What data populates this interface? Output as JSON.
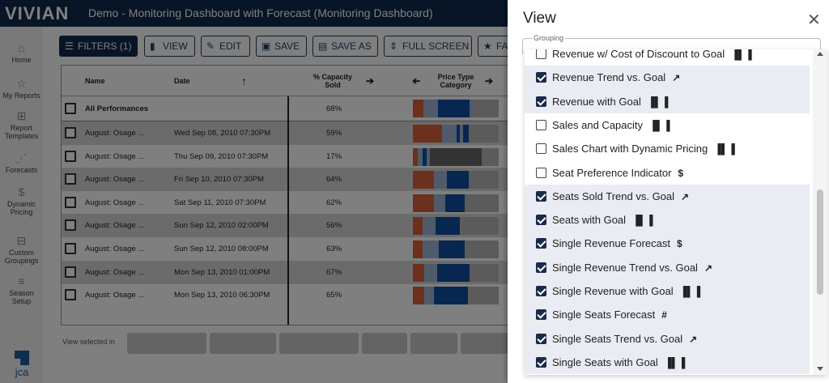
{
  "app": {
    "logo": "VIVIAN",
    "title": "Demo - Monitoring Dashboard with Forecast (Monitoring Dashboard)",
    "brand": "jca"
  },
  "colors": {
    "topbar": "#0f2b4c",
    "accent": "#1a2a4a",
    "bar_orange": "#d8613a",
    "bar_blue": "#0e4fa3",
    "bar_light": "#9fb6d4",
    "bar_grey": "#b7b7b7",
    "bar_dark_grey": "#666666"
  },
  "sidebar": {
    "items": [
      {
        "label": "Home",
        "icon": "home-icon"
      },
      {
        "label": "My Reports",
        "icon": "star-icon"
      },
      {
        "label": "Report Templates",
        "icon": "template-icon"
      },
      {
        "label": "Forecasts",
        "icon": "forecast-icon"
      },
      {
        "label": "Dynamic Pricing",
        "icon": "dollar-icon"
      },
      {
        "label": "Custom Groupings",
        "icon": "grouping-icon"
      },
      {
        "label": "Season Setup",
        "icon": "season-icon"
      }
    ]
  },
  "toolbar": {
    "filters": "FILTERS (1)",
    "view": "VIEW",
    "edit": "EDIT",
    "save": "SAVE",
    "save_as": "SAVE AS",
    "full_screen": "FULL SCREEN",
    "fav": "FA"
  },
  "grid": {
    "headers": {
      "name": "Name",
      "date": "Date",
      "capacity": "% Capacity Sold",
      "price_type": "Price Type Category"
    },
    "all_row": {
      "name": "All Performances",
      "capacity": "68%"
    },
    "rows": [
      {
        "name": "August: Osage ...",
        "date": "Wed Sep 08, 2010 07:30PM",
        "capacity": "59%"
      },
      {
        "name": "August: Osage ...",
        "date": "Thu Sep 09, 2010 07:30PM",
        "capacity": "17%"
      },
      {
        "name": "August: Osage ...",
        "date": "Fri Sep 10, 2010 07:30PM",
        "capacity": "64%"
      },
      {
        "name": "August: Osage ...",
        "date": "Sat Sep 11, 2010 07:30PM",
        "capacity": "62%"
      },
      {
        "name": "August: Osage ...",
        "date": "Sun Sep 12, 2010 02:00PM",
        "capacity": "56%"
      },
      {
        "name": "August: Osage ...",
        "date": "Sun Sep 12, 2010 08:00PM",
        "capacity": "63%"
      },
      {
        "name": "August: Osage ...",
        "date": "Mon Sep 13, 2010 01:00PM",
        "capacity": "67%"
      },
      {
        "name": "August: Osage ...",
        "date": "Mon Sep 13, 2010 06:30PM",
        "capacity": "65%"
      }
    ],
    "footer_text": "View selected in"
  },
  "panel": {
    "title": "View",
    "group_label": "Grouping",
    "items": [
      {
        "label": "Revenue w/ Cost of Discount to Goal",
        "icon": "bar-chart-icon",
        "glyph": "▐▌▐",
        "checked": false
      },
      {
        "label": "Revenue Trend vs. Goal",
        "icon": "trend-arrow-icon",
        "glyph": "↗",
        "checked": true
      },
      {
        "label": "Revenue with Goal",
        "icon": "bar-chart-icon",
        "glyph": "▐▌▐",
        "checked": true
      },
      {
        "label": "Sales and Capacity",
        "icon": "bar-chart-icon",
        "glyph": "▐▌▐",
        "checked": false
      },
      {
        "label": "Sales Chart with Dynamic Pricing",
        "icon": "bar-chart-icon",
        "glyph": "▐▌▐",
        "checked": false
      },
      {
        "label": "Seat Preference Indicator",
        "icon": "dollar-icon",
        "glyph": "$",
        "checked": false
      },
      {
        "label": "Seats Sold Trend vs. Goal",
        "icon": "trend-arrow-icon",
        "glyph": "↗",
        "checked": true
      },
      {
        "label": "Seats with Goal",
        "icon": "bar-chart-icon",
        "glyph": "▐▌▐",
        "checked": true
      },
      {
        "label": "Single Revenue Forecast",
        "icon": "dollar-icon",
        "glyph": "$",
        "checked": true
      },
      {
        "label": "Single Revenue Trend vs. Goal",
        "icon": "trend-arrow-icon",
        "glyph": "↗",
        "checked": true
      },
      {
        "label": "Single Revenue with Goal",
        "icon": "bar-chart-icon",
        "glyph": "▐▌▐",
        "checked": true
      },
      {
        "label": "Single Seats Forecast",
        "icon": "hash-icon",
        "glyph": "#",
        "checked": true
      },
      {
        "label": "Single Seats Trend vs. Goal",
        "icon": "trend-arrow-icon",
        "glyph": "↗",
        "checked": true
      },
      {
        "label": "Single Seats with Goal",
        "icon": "bar-chart-icon",
        "glyph": "▐▌▐",
        "checked": true
      }
    ]
  }
}
